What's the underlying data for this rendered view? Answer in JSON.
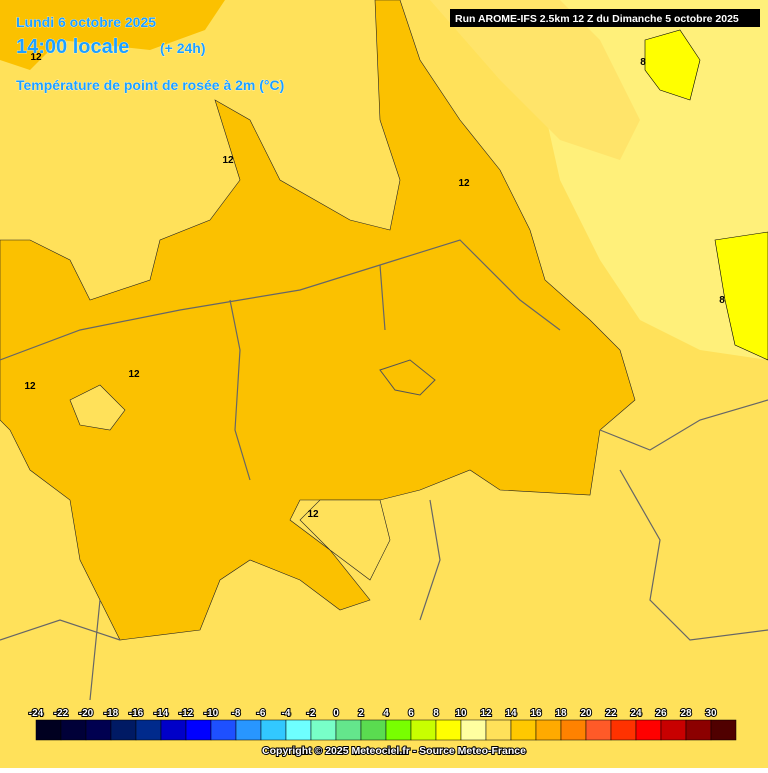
{
  "header": {
    "date": "Lundi 6 octobre 2025",
    "time": "14:00 locale",
    "lead": "(+ 24h)",
    "parameter": "Température de point de rosée à 2m (°C)",
    "run": "Run AROME-IFS 2.5km 12 Z du Dimanche 5 octobre 2025"
  },
  "contour_labels": [
    "12",
    "12",
    "12",
    "8",
    "8",
    "12",
    "12",
    "12"
  ],
  "legend": {
    "labels": [
      -24,
      -22,
      -20,
      -18,
      -16,
      -14,
      -12,
      -10,
      -8,
      -6,
      -4,
      -2,
      0,
      2,
      4,
      6,
      8,
      10,
      12,
      14,
      16,
      18,
      20,
      22,
      24,
      26,
      28,
      30
    ],
    "colors": [
      "#000020",
      "#000038",
      "#000050",
      "#001a64",
      "#002a8c",
      "#0000c8",
      "#0000ff",
      "#1e50ff",
      "#2896ff",
      "#32c8ff",
      "#6effff",
      "#78ffc8",
      "#64e68c",
      "#5adc50",
      "#78ff00",
      "#c8ff00",
      "#ffff00",
      "#ffffa0",
      "#ffe15a",
      "#ffc800",
      "#ffaa00",
      "#ff8200",
      "#ff5a28",
      "#ff3200",
      "#ff0000",
      "#c80000",
      "#8c0000",
      "#500000"
    ]
  },
  "footer": {
    "copyright": "Copyright © 2025 Meteociel.fr - Source Meteo-France"
  }
}
